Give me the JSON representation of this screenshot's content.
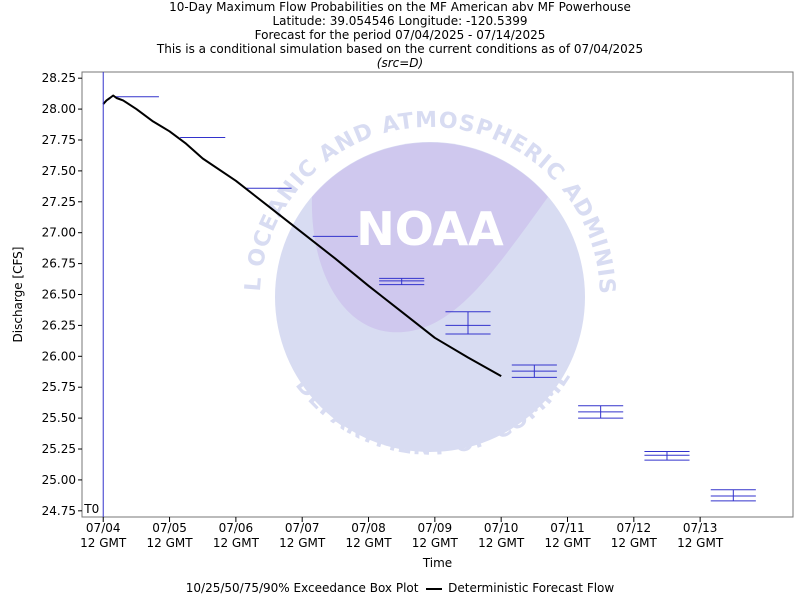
{
  "titles": {
    "line1": "10-Day Maximum Flow Probabilities on the MF American abv MF Powerhouse",
    "line2": "Latitude: 39.054546 Longitude: -120.5399",
    "line3": "Forecast for the period 07/04/2025 - 07/14/2025",
    "line4": "This is a conditional simulation based on the current conditions as of 07/04/2025",
    "line5": "(src=D)"
  },
  "watermark": {
    "logo_text": "NOAA",
    "arc_top": "NATIONAL OCEANIC AND ATMOSPHERIC ADMINISTRATION",
    "arc_bottom": "U.S. DEPARTMENT OF COMMERCE"
  },
  "colors": {
    "box": "#3333cc",
    "line": "#000000",
    "t0_line": "#3333cc",
    "watermark_light": "#d8dcf2",
    "watermark_dark": "#cfc8ee"
  },
  "legend": {
    "box_label": "10/25/50/75/90% Exceedance Box Plot",
    "line_label": "Deterministic Forecast Flow"
  },
  "chart_data": {
    "type": "box+line",
    "xlabel": "Time",
    "ylabel": "Discharge [CFS]",
    "ylim": [
      24.7,
      28.3
    ],
    "yticks": [
      24.75,
      25.0,
      25.25,
      25.5,
      25.75,
      26.0,
      26.25,
      26.5,
      26.75,
      27.0,
      27.25,
      27.5,
      27.75,
      28.0,
      28.25
    ],
    "xlim": [
      -0.32,
      10.4
    ],
    "xticks": [
      {
        "x": 0,
        "l1": "07/04",
        "l2": "12 GMT"
      },
      {
        "x": 1,
        "l1": "07/05",
        "l2": "12 GMT"
      },
      {
        "x": 2,
        "l1": "07/06",
        "l2": "12 GMT"
      },
      {
        "x": 3,
        "l1": "07/07",
        "l2": "12 GMT"
      },
      {
        "x": 4,
        "l1": "07/08",
        "l2": "12 GMT"
      },
      {
        "x": 5,
        "l1": "07/09",
        "l2": "12 GMT"
      },
      {
        "x": 6,
        "l1": "07/10",
        "l2": "12 GMT"
      },
      {
        "x": 7,
        "l1": "07/11",
        "l2": "12 GMT"
      },
      {
        "x": 8,
        "l1": "07/12",
        "l2": "12 GMT"
      },
      {
        "x": 9,
        "l1": "07/13",
        "l2": "12 GMT"
      }
    ],
    "t0": {
      "x": 0,
      "label": "T0"
    },
    "boxes": [
      {
        "x": 0.5,
        "p10": 28.1,
        "p25": 28.1,
        "p50": 28.1,
        "p75": 28.1,
        "p90": 28.1
      },
      {
        "x": 1.5,
        "p10": 27.77,
        "p25": 27.77,
        "p50": 27.77,
        "p75": 27.77,
        "p90": 27.77
      },
      {
        "x": 2.5,
        "p10": 27.36,
        "p25": 27.36,
        "p50": 27.36,
        "p75": 27.36,
        "p90": 27.36
      },
      {
        "x": 3.5,
        "p10": 26.97,
        "p25": 26.97,
        "p50": 26.97,
        "p75": 26.97,
        "p90": 26.97
      },
      {
        "x": 4.5,
        "p10": 26.58,
        "p25": 26.59,
        "p50": 26.61,
        "p75": 26.62,
        "p90": 26.63
      },
      {
        "x": 5.5,
        "p10": 26.18,
        "p25": 26.2,
        "p50": 26.25,
        "p75": 26.33,
        "p90": 26.36
      },
      {
        "x": 6.5,
        "p10": 25.83,
        "p25": 25.85,
        "p50": 25.88,
        "p75": 25.91,
        "p90": 25.93
      },
      {
        "x": 7.5,
        "p10": 25.5,
        "p25": 25.52,
        "p50": 25.55,
        "p75": 25.57,
        "p90": 25.6
      },
      {
        "x": 8.5,
        "p10": 25.16,
        "p25": 25.18,
        "p50": 25.2,
        "p75": 25.22,
        "p90": 25.23
      },
      {
        "x": 9.5,
        "p10": 24.83,
        "p25": 24.85,
        "p50": 24.87,
        "p75": 24.9,
        "p90": 24.92
      }
    ],
    "line": {
      "x": [
        0.0,
        0.05,
        0.1,
        0.15,
        0.2,
        0.3,
        0.5,
        0.75,
        1.0,
        1.25,
        1.5,
        2.0,
        2.5,
        3.0,
        3.5,
        4.0,
        4.5,
        5.0,
        5.5,
        6.0
      ],
      "y": [
        28.04,
        28.07,
        28.09,
        28.11,
        28.09,
        28.07,
        28.0,
        27.9,
        27.82,
        27.72,
        27.6,
        27.42,
        27.21,
        27.0,
        26.79,
        26.57,
        26.36,
        26.15,
        25.99,
        25.84
      ]
    }
  }
}
